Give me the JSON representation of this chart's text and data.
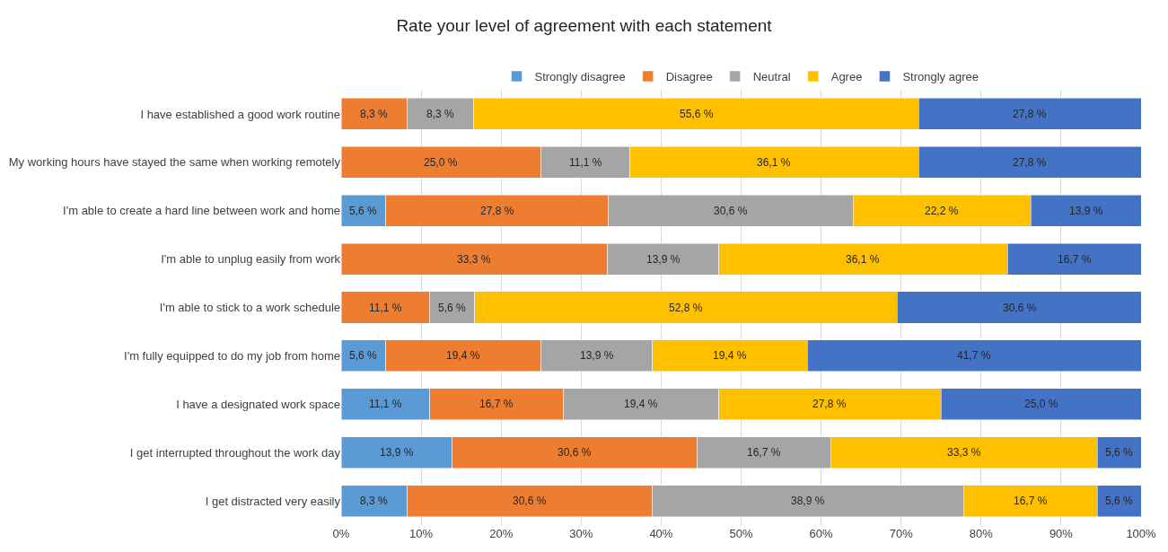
{
  "chart_data": {
    "type": "bar",
    "orientation": "horizontal",
    "stacked": true,
    "title": "Rate your level of agreement with each statement",
    "categories": [
      "I have established a good work routine",
      "My working hours have stayed the same when working remotely",
      "I'm able to create a hard line between work and home",
      "I'm able to unplug easily from work",
      "I'm able to stick to a work schedule",
      "I'm fully equipped to do my job from home",
      "I have a designated work space",
      "I get interrupted throughout the work day",
      "I get distracted very easily"
    ],
    "series": [
      {
        "name": "Strongly disagree",
        "color": "#5b9bd5",
        "values": [
          null,
          null,
          5.6,
          null,
          null,
          5.6,
          11.1,
          13.9,
          8.3
        ],
        "value_labels": [
          null,
          null,
          "5,6 %",
          null,
          null,
          "5,6 %",
          "11,1 %",
          "13,9 %",
          "8,3 %"
        ]
      },
      {
        "name": "Disagree",
        "color": "#ed7d31",
        "values": [
          8.3,
          25.0,
          27.8,
          33.3,
          11.1,
          19.4,
          16.7,
          30.6,
          30.6
        ],
        "value_labels": [
          "8,3 %",
          "25,0 %",
          "27,8 %",
          "33,3 %",
          "11,1 %",
          "19,4 %",
          "16,7 %",
          "30,6 %",
          "30,6 %"
        ]
      },
      {
        "name": "Neutral",
        "color": "#a5a5a5",
        "values": [
          8.3,
          11.1,
          30.6,
          13.9,
          5.6,
          13.9,
          19.4,
          16.7,
          38.9
        ],
        "value_labels": [
          "8,3 %",
          "11,1 %",
          "30,6 %",
          "13,9 %",
          "5,6 %",
          "13,9 %",
          "19,4 %",
          "16,7 %",
          "38,9 %"
        ]
      },
      {
        "name": "Agree",
        "color": "#ffc000",
        "values": [
          55.6,
          36.1,
          22.2,
          36.1,
          52.8,
          19.4,
          27.8,
          33.3,
          16.7
        ],
        "value_labels": [
          "55,6 %",
          "36,1 %",
          "22,2 %",
          "36,1 %",
          "52,8 %",
          "19,4 %",
          "27,8 %",
          "33,3 %",
          "16,7 %"
        ]
      },
      {
        "name": "Strongly agree",
        "color": "#4472c4",
        "values": [
          27.8,
          27.8,
          13.9,
          16.7,
          30.6,
          41.7,
          25.0,
          5.6,
          5.6
        ],
        "value_labels": [
          "27,8 %",
          "27,8 %",
          "13,9 %",
          "16,7 %",
          "30,6 %",
          "41,7 %",
          "25,0 %",
          "5,6 %",
          "5,6 %"
        ]
      }
    ],
    "xlim": [
      0,
      100
    ],
    "xticks": [
      {
        "value": 0,
        "label": "0%"
      },
      {
        "value": 10,
        "label": "10%"
      },
      {
        "value": 20,
        "label": "20%"
      },
      {
        "value": 30,
        "label": "30%"
      },
      {
        "value": 40,
        "label": "40%"
      },
      {
        "value": 50,
        "label": "50%"
      },
      {
        "value": 60,
        "label": "60%"
      },
      {
        "value": 70,
        "label": "70%"
      },
      {
        "value": 80,
        "label": "80%"
      },
      {
        "value": 90,
        "label": "90%"
      },
      {
        "value": 100,
        "label": "100%"
      }
    ],
    "grid": "x",
    "legend": "top"
  }
}
